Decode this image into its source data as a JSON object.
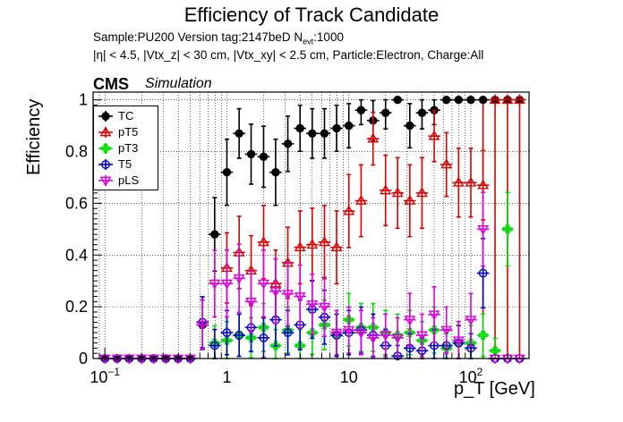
{
  "chart_data": {
    "type": "scatter",
    "title": "Efficiency of Track Candidate",
    "subtitle_line1": "Sample:PU200   Version tag:2147beD  N",
    "subtitle_sub": "evt",
    "subtitle_line1_end": ":1000",
    "subtitle_line2": "|η| < 4.5, |Vtx_z| < 30 cm, |Vtx_xy| < 2.5 cm, Particle:Electron, Charge:All",
    "cms_label": "CMS",
    "sim_label": "Simulation",
    "ylabel": "Efficiency",
    "xlabel": "p_T [GeV]",
    "x_scale": "log",
    "xlim": [
      0.08,
      300
    ],
    "ylim": [
      0,
      1.03
    ],
    "grid": true,
    "legend_position": "top-left",
    "x_ticks": [
      {
        "value": 0.1,
        "base": "10",
        "exp": "−1"
      },
      {
        "value": 1,
        "base": "1",
        "exp": ""
      },
      {
        "value": 10,
        "base": "10",
        "exp": ""
      },
      {
        "value": 100,
        "base": "10",
        "exp": "2"
      }
    ],
    "y_ticks": [
      0,
      0.2,
      0.4,
      0.6,
      0.8,
      1
    ],
    "x": [
      0.1,
      0.126,
      0.158,
      0.2,
      0.251,
      0.316,
      0.398,
      0.501,
      0.631,
      0.794,
      1.0,
      1.26,
      1.58,
      2.0,
      2.51,
      3.16,
      3.98,
      5.01,
      6.31,
      7.94,
      10.0,
      12.6,
      15.8,
      20.0,
      25.1,
      31.6,
      39.8,
      50.1,
      63.1,
      79.4,
      100,
      126,
      158,
      200,
      251
    ],
    "series": [
      {
        "name": "TC",
        "color": "#000000",
        "marker": "filled-circle",
        "values": [
          0,
          0,
          0,
          0,
          0,
          0,
          0,
          0,
          0.13,
          0.48,
          0.72,
          0.87,
          0.79,
          0.78,
          0.72,
          0.83,
          0.89,
          0.87,
          0.87,
          0.89,
          0.9,
          0.96,
          0.92,
          0.95,
          1.0,
          0.9,
          0.95,
          0.96,
          1.0,
          1.0,
          1.0,
          1.0,
          1.0,
          1.0,
          1.0
        ]
      },
      {
        "name": "pT5",
        "color": "#dd0000",
        "marker": "open-triangle",
        "values": [
          null,
          null,
          null,
          null,
          null,
          null,
          null,
          null,
          null,
          null,
          0.35,
          0.41,
          0.34,
          0.45,
          0.29,
          0.37,
          0.43,
          0.44,
          0.45,
          0.43,
          0.57,
          0.61,
          0.85,
          0.65,
          0.64,
          0.61,
          0.64,
          0.86,
          0.75,
          0.68,
          0.68,
          0.67,
          1.0,
          1.0,
          1.0
        ]
      },
      {
        "name": "pT3",
        "color": "#00dd00",
        "marker": "open-cross",
        "values": [
          null,
          null,
          null,
          null,
          null,
          null,
          null,
          null,
          null,
          0.06,
          0.07,
          0.09,
          0.08,
          0.12,
          0.05,
          0.11,
          0.05,
          0.1,
          0.13,
          0.09,
          0.15,
          0.12,
          0.12,
          0.1,
          0.09,
          0.1,
          0.07,
          0.11,
          0.04,
          0.06,
          0.06,
          0.09,
          0.03,
          0.5,
          null
        ]
      },
      {
        "name": "T5",
        "color": "#0000cc",
        "marker": "open-circle",
        "values": [
          0,
          0,
          0,
          0,
          0,
          0,
          0,
          0,
          0.14,
          0.05,
          0.1,
          0.09,
          0.12,
          0.08,
          0.15,
          0.1,
          0.13,
          0.19,
          0.16,
          0.09,
          0.1,
          0.11,
          0.09,
          0.05,
          0.01,
          0.04,
          0.03,
          0.05,
          0.05,
          0.06,
          0.04,
          0.33,
          0,
          0,
          0
        ]
      },
      {
        "name": "pLS",
        "color": "#dd00dd",
        "marker": "open-triangle-down",
        "values": [
          0,
          0,
          0,
          0,
          0,
          0,
          0,
          0,
          0.13,
          0.29,
          0.29,
          0.31,
          0.22,
          0.29,
          0.26,
          0.25,
          0.24,
          0.21,
          0.2,
          0.1,
          0.11,
          0.1,
          0.08,
          0.09,
          0.08,
          0.15,
          0.09,
          0.17,
          0.11,
          0.07,
          0.15,
          0.5,
          0,
          0,
          0
        ]
      }
    ]
  }
}
